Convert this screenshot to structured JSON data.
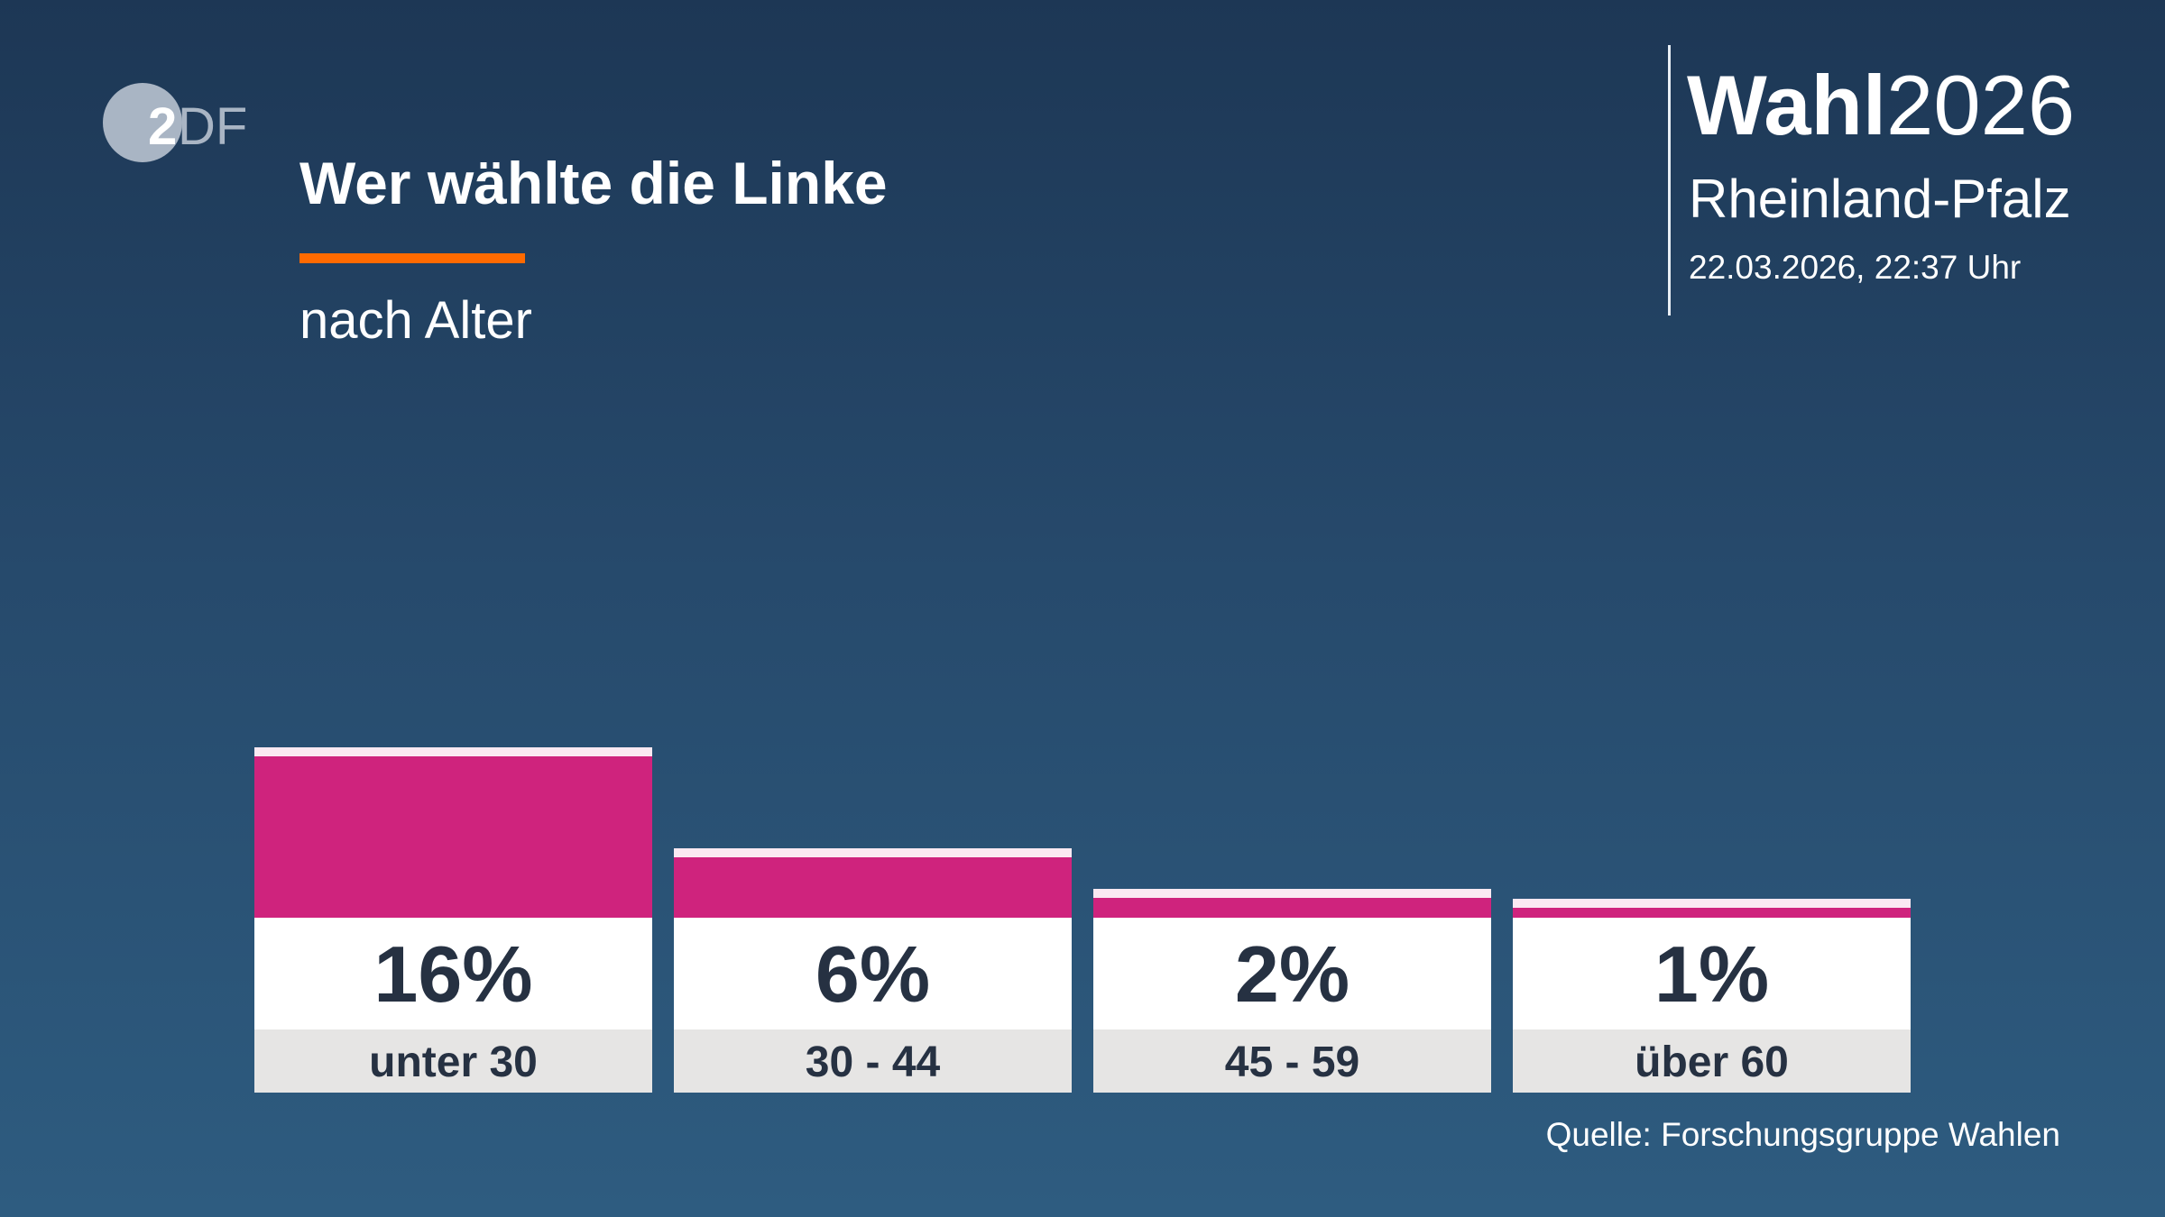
{
  "logo": {
    "text": "2DF"
  },
  "header": {
    "title": "Wer wählte die Linke",
    "subtitle": "nach Alter",
    "accent_color": "#ff6a00"
  },
  "brand": {
    "wahl": "Wahl",
    "year": "2026",
    "region": "Rheinland-Pfalz",
    "datetime": "22.03.2026, 22:37 Uhr"
  },
  "source": "Quelle: Forschungsgruppe Wahlen",
  "chart_data": {
    "type": "bar",
    "title": "Wer wählte die Linke",
    "subtitle": "nach Alter",
    "categories": [
      "unter 30",
      "30 - 44",
      "45 - 59",
      "über 60"
    ],
    "values": [
      16,
      6,
      2,
      1
    ],
    "value_labels": [
      "16%",
      "6%",
      "2%",
      "1%"
    ],
    "unit": "%",
    "bar_color": "#cf237d",
    "grid": false
  }
}
